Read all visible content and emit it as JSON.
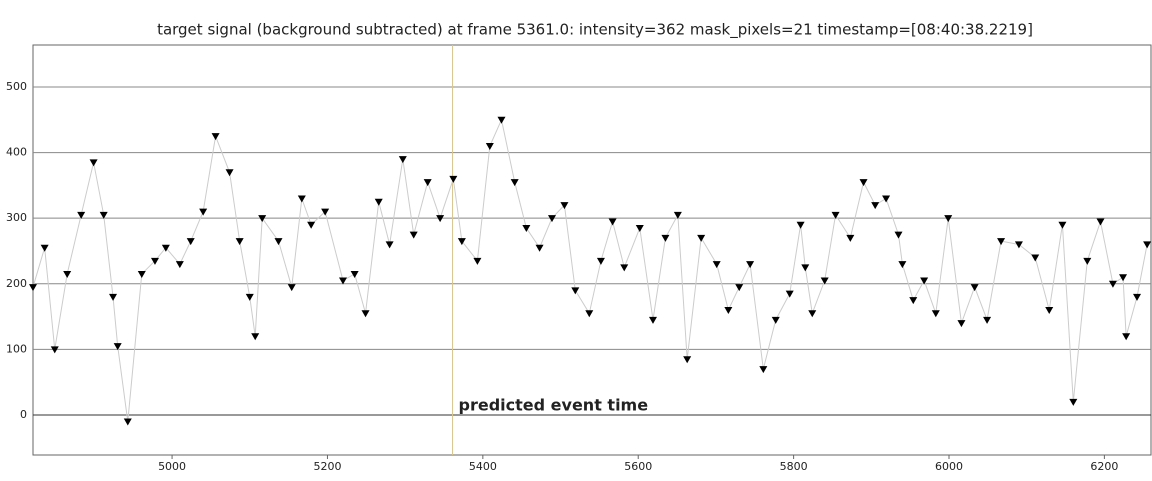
{
  "chart_data": {
    "type": "scatter",
    "title": "target signal (background subtracted) at frame 5361.0: intensity=362 mask_pixels=21 timestamp=[08:40:38.2219]",
    "x": [
      4821,
      4836,
      4849,
      4865,
      4883,
      4899,
      4912,
      4924,
      4930,
      4943,
      4961,
      4978,
      4992,
      5010,
      5024,
      5040,
      5056,
      5074,
      5087,
      5100,
      5107,
      5116,
      5137,
      5154,
      5167,
      5179,
      5197,
      5220,
      5235,
      5249,
      5266,
      5280,
      5297,
      5311,
      5329,
      5345,
      5362,
      5373,
      5393,
      5409,
      5424,
      5441,
      5456,
      5473,
      5489,
      5505,
      5519,
      5537,
      5552,
      5567,
      5582,
      5602,
      5619,
      5635,
      5651,
      5663,
      5681,
      5701,
      5716,
      5730,
      5744,
      5761,
      5777,
      5795,
      5809,
      5815,
      5824,
      5840,
      5854,
      5873,
      5890,
      5905,
      5919,
      5935,
      5940,
      5954,
      5968,
      5983,
      5999,
      6016,
      6033,
      6049,
      6067,
      6090,
      6111,
      6129,
      6146,
      6160,
      6178,
      6195,
      6211,
      6224,
      6228,
      6242,
      6255
    ],
    "values": [
      195,
      255,
      100,
      215,
      305,
      385,
      305,
      180,
      105,
      -10,
      215,
      235,
      255,
      230,
      265,
      310,
      425,
      370,
      265,
      180,
      120,
      300,
      265,
      195,
      330,
      290,
      310,
      205,
      215,
      155,
      325,
      260,
      390,
      275,
      355,
      300,
      360,
      265,
      235,
      410,
      450,
      355,
      285,
      255,
      300,
      320,
      190,
      155,
      235,
      295,
      225,
      285,
      145,
      270,
      305,
      85,
      270,
      230,
      160,
      195,
      230,
      70,
      145,
      185,
      290,
      225,
      155,
      205,
      305,
      270,
      355,
      320,
      330,
      275,
      230,
      175,
      205,
      155,
      300,
      140,
      195,
      145,
      265,
      260,
      240,
      160,
      290,
      20,
      235,
      295,
      200,
      210,
      120,
      180,
      260
    ],
    "color": "#000000",
    "line_color": "#cccccc",
    "xlim": [
      4821,
      6260
    ],
    "ylim": [
      -61,
      564
    ],
    "xticks": [
      5000,
      5200,
      5400,
      5600,
      5800,
      6000,
      6200
    ],
    "yticks": [
      0,
      100,
      200,
      300,
      400,
      500
    ],
    "grid": true,
    "annotations": [
      {
        "x": 5361,
        "text": "predicted event time",
        "color": "#d8c690"
      }
    ]
  }
}
